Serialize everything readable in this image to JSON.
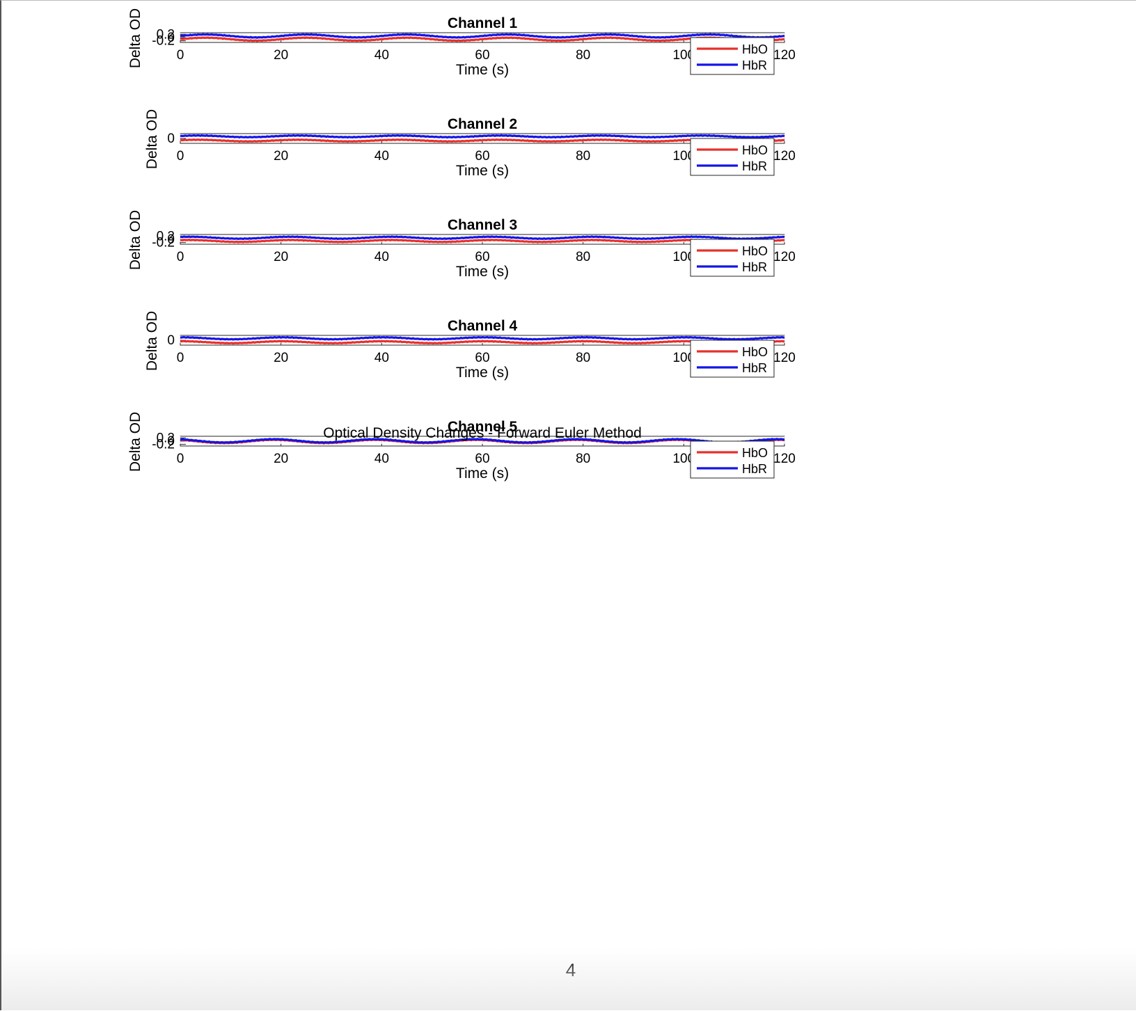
{
  "figure": {
    "suptitle": "Optical Density Changes - Forward Euler Method",
    "xlabel": "Time (s)",
    "ylabel": "Delta OD",
    "xticks": [
      0,
      20,
      40,
      60,
      80,
      100,
      120
    ]
  },
  "page_number": "4",
  "chart_data": [
    {
      "type": "line",
      "title": "Channel 1",
      "xlabel": "Time (s)",
      "ylabel": "Delta OD",
      "xlim": [
        0,
        120
      ],
      "ylim": [
        -0.3,
        0.3
      ],
      "yticks": [
        -0.2,
        0,
        0.2
      ],
      "ytick_labels": [
        "-0.2",
        "0",
        "0.2"
      ],
      "legend": "bottom-right",
      "series": [
        {
          "name": "HbO",
          "color": "#e8302a",
          "waveform": {
            "offset": -0.1,
            "amplitude": 0.09,
            "period_s": 20.0,
            "phase": 0.0
          }
        },
        {
          "name": "HbR",
          "color": "#1414e6",
          "waveform": {
            "offset": 0.1,
            "amplitude": 0.09,
            "period_s": 20.0,
            "phase": 0.0
          }
        }
      ]
    },
    {
      "type": "line",
      "title": "Channel 2",
      "xlabel": "Time (s)",
      "ylabel": "Delta OD",
      "xlim": [
        0,
        120
      ],
      "ylim": [
        -0.3,
        0.3
      ],
      "yticks": [
        0
      ],
      "ytick_labels": [
        "0"
      ],
      "legend": "bottom-right",
      "series": [
        {
          "name": "HbO",
          "color": "#e8302a",
          "waveform": {
            "offset": -0.13,
            "amplitude": 0.05,
            "period_s": 20.0,
            "phase": 0.5
          }
        },
        {
          "name": "HbR",
          "color": "#1414e6",
          "waveform": {
            "offset": 0.13,
            "amplitude": 0.05,
            "period_s": 20.0,
            "phase": 0.5
          }
        }
      ]
    },
    {
      "type": "line",
      "title": "Channel 3",
      "xlabel": "Time (s)",
      "ylabel": "Delta OD",
      "xlim": [
        0,
        120
      ],
      "ylim": [
        -0.3,
        0.3
      ],
      "yticks": [
        -0.2,
        0,
        0.2
      ],
      "ytick_labels": [
        "-0.2",
        "0",
        "0.2"
      ],
      "legend": "bottom-right",
      "series": [
        {
          "name": "HbO",
          "color": "#e8302a",
          "waveform": {
            "offset": -0.1,
            "amplitude": 0.06,
            "period_s": 20.0,
            "phase": 1.0
          }
        },
        {
          "name": "HbR",
          "color": "#1414e6",
          "waveform": {
            "offset": 0.1,
            "amplitude": 0.06,
            "period_s": 20.0,
            "phase": 1.0
          }
        }
      ]
    },
    {
      "type": "line",
      "title": "Channel 4",
      "xlabel": "Time (s)",
      "ylabel": "Delta OD",
      "xlim": [
        0,
        120
      ],
      "ylim": [
        -0.3,
        0.3
      ],
      "yticks": [
        0
      ],
      "ytick_labels": [
        "0"
      ],
      "legend": "bottom-right",
      "series": [
        {
          "name": "HbO",
          "color": "#e8302a",
          "waveform": {
            "offset": -0.12,
            "amplitude": 0.06,
            "period_s": 20.0,
            "phase": 1.5
          }
        },
        {
          "name": "HbR",
          "color": "#1414e6",
          "waveform": {
            "offset": 0.12,
            "amplitude": 0.06,
            "period_s": 20.0,
            "phase": 1.5
          }
        }
      ]
    },
    {
      "type": "line",
      "title": "Channel 5",
      "xlabel": "Time (s)",
      "ylabel": "Delta OD",
      "xlim": [
        0,
        120
      ],
      "ylim": [
        -0.3,
        0.3
      ],
      "yticks": [
        -0.2,
        0,
        0.2
      ],
      "ytick_labels": [
        "-0.2",
        "0",
        "0.2"
      ],
      "legend": "bottom-right",
      "series": [
        {
          "name": "HbO",
          "color": "#e8302a",
          "waveform": {
            "offset": -0.02,
            "amplitude": 0.1,
            "period_s": 20.0,
            "phase": 2.0
          }
        },
        {
          "name": "HbR",
          "color": "#1414e6",
          "waveform": {
            "offset": 0.02,
            "amplitude": 0.1,
            "period_s": 20.0,
            "phase": 2.0
          }
        }
      ]
    }
  ]
}
